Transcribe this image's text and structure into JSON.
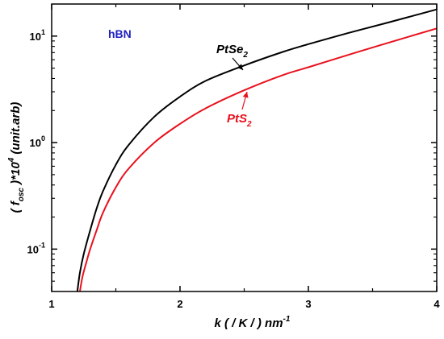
{
  "chart_data": {
    "type": "line",
    "x_scale": "linear",
    "y_scale": "log",
    "xlim": [
      1,
      4
    ],
    "ylim": [
      0.04,
      20
    ],
    "x_ticks": [
      1,
      2,
      3,
      4
    ],
    "x_tick_labels": [
      "1",
      "2",
      "3",
      "4"
    ],
    "y_ticks": [
      0.1,
      1,
      10
    ],
    "y_tick_labels": [
      "10",
      "10",
      "10"
    ],
    "y_tick_exponents": [
      "-1",
      "0",
      "1"
    ],
    "xlabel": "k ( / K / ) nm",
    "xlabel_superscript": "-1",
    "ylabel": "( f",
    "ylabel_subscript": "osc",
    "ylabel_tail": " )*10",
    "ylabel_superscript": "4",
    "ylabel_end": " (unit.arb)",
    "grid": false,
    "annotations": [
      {
        "text": "hBN",
        "color": "#1f1fbf"
      }
    ],
    "series": [
      {
        "name": "PtSe",
        "name_subscript": "2",
        "color": "#000000",
        "x": [
          1.2,
          1.22,
          1.25,
          1.3,
          1.35,
          1.4,
          1.5,
          1.6,
          1.8,
          2.0,
          2.2,
          2.5,
          2.8,
          3.0,
          3.3,
          3.6,
          4.0
        ],
        "y": [
          0.04,
          0.06,
          0.09,
          0.15,
          0.24,
          0.35,
          0.62,
          0.95,
          1.75,
          2.7,
          3.8,
          5.3,
          7.1,
          8.4,
          10.6,
          13.2,
          17.8
        ]
      },
      {
        "name": "PtS",
        "name_subscript": "2",
        "color": "#e8111d",
        "x": [
          1.22,
          1.24,
          1.27,
          1.3,
          1.35,
          1.4,
          1.5,
          1.6,
          1.8,
          2.0,
          2.2,
          2.5,
          2.8,
          3.0,
          3.3,
          3.6,
          4.0
        ],
        "y": [
          0.04,
          0.055,
          0.075,
          0.1,
          0.15,
          0.22,
          0.38,
          0.57,
          1.0,
          1.5,
          2.1,
          3.1,
          4.3,
          5.1,
          6.6,
          8.5,
          11.8
        ]
      }
    ]
  }
}
